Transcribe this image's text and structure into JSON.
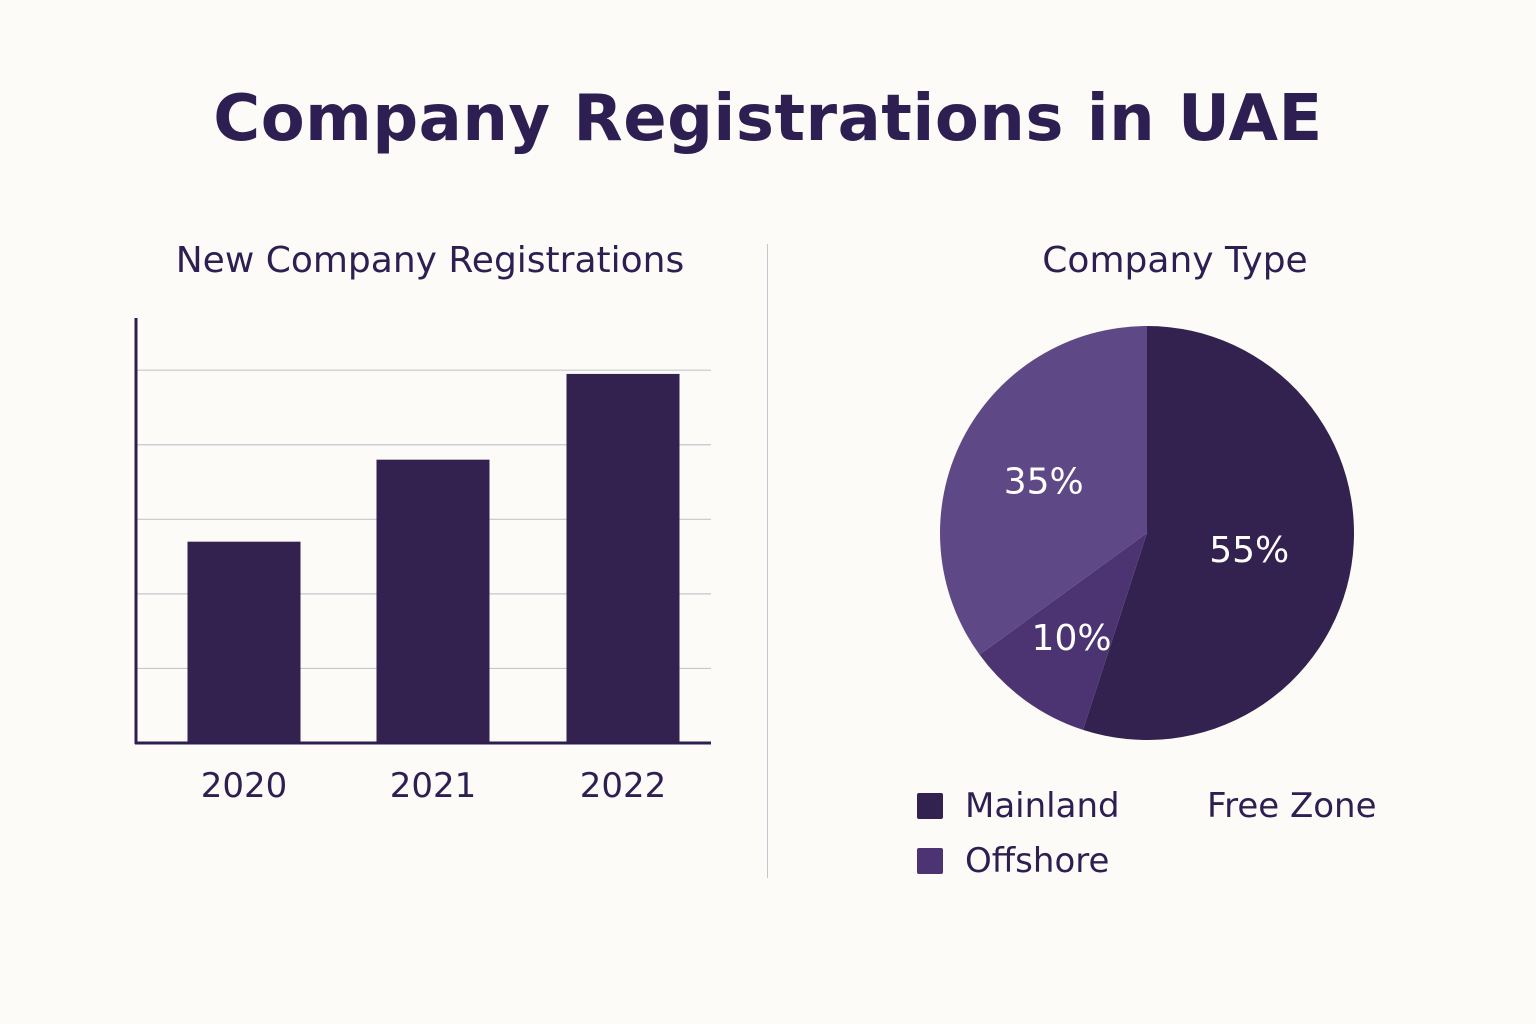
{
  "title": "Company Registrations in UAE",
  "colors": {
    "bar": "#33214f",
    "grid": "#c9c6ce",
    "axis": "#2e1f52",
    "mainland": "#33214f",
    "offshore": "#4b3471",
    "freezone": "#5e4886",
    "text": "#2e1f52"
  },
  "chart_data": [
    {
      "type": "bar",
      "title": "New Company Registrations",
      "categories": [
        "2020",
        "2021",
        "2022"
      ],
      "values": [
        2.7,
        3.8,
        4.95
      ],
      "ylim": [
        0,
        5.7
      ],
      "gridlines": [
        1,
        2,
        3,
        4,
        5
      ],
      "xlabel": "",
      "ylabel": ""
    },
    {
      "type": "pie",
      "title": "Company Type",
      "slices": [
        {
          "label": "Mainland",
          "value": 55,
          "text": "55%",
          "color": "#33214f"
        },
        {
          "label": "Offshore",
          "value": 10,
          "text": "10%",
          "color": "#4b3471"
        },
        {
          "label": "Free Zone",
          "value": 35,
          "text": "35%",
          "color": "#5e4886"
        }
      ],
      "legend": [
        {
          "label": "Mainland",
          "swatch": true,
          "color": "#33214f"
        },
        {
          "label": "Free Zone",
          "swatch": false,
          "color": "#5e4886"
        },
        {
          "label": "Offshore",
          "swatch": true,
          "color": "#4b3471"
        }
      ]
    }
  ]
}
